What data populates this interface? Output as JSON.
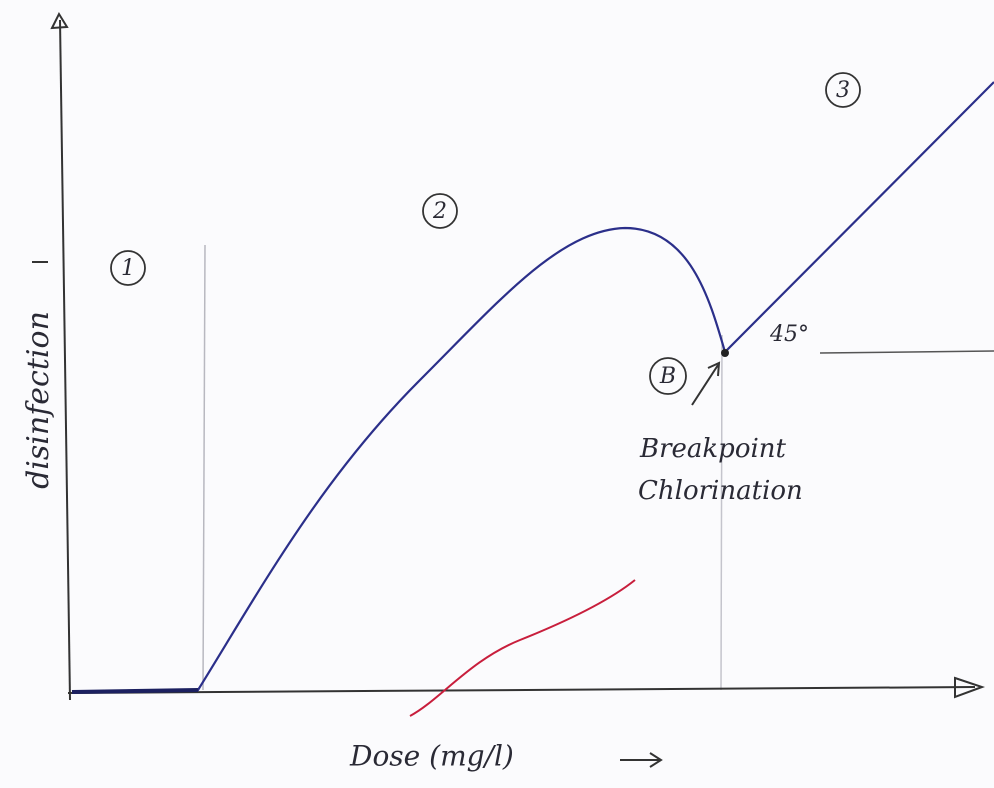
{
  "zones": [
    {
      "label": "1"
    },
    {
      "label": "2"
    },
    {
      "label": "3"
    }
  ],
  "breakpoint": {
    "marker": "B",
    "label_lines": [
      "Breakpoint",
      "Chlorination"
    ]
  },
  "angle_label": "45°",
  "axes": {
    "y_label": "disinfection",
    "x_label": "Dose (mg/l)"
  }
}
